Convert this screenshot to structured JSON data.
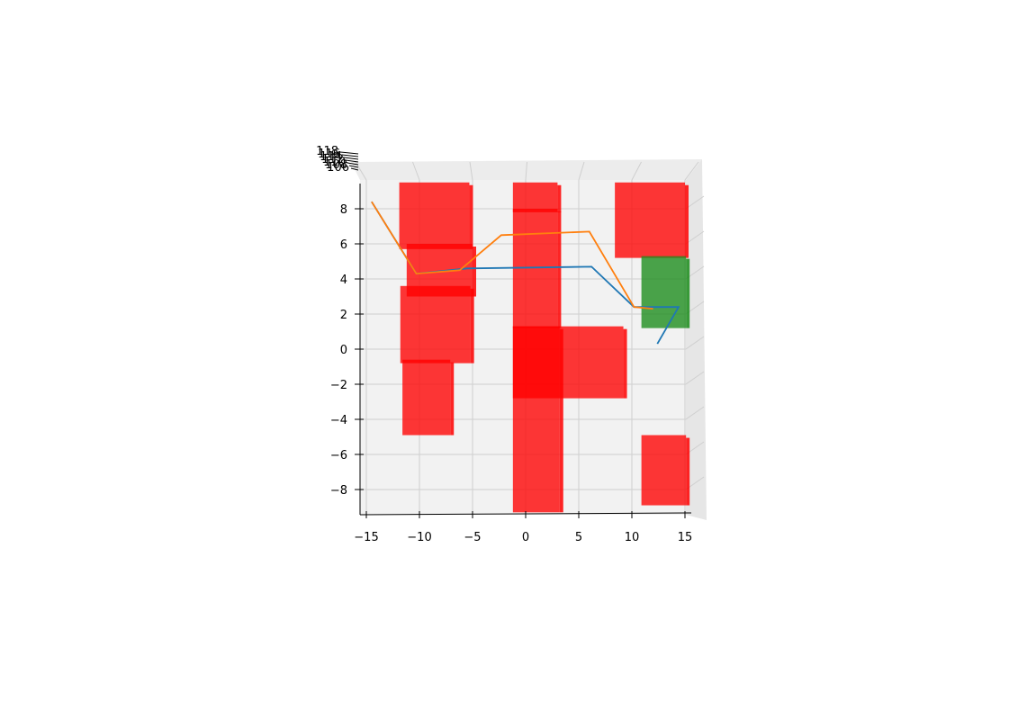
{
  "chart_data": {
    "type": "3d-line-with-boxes",
    "title": "",
    "xlabel": "",
    "ylabel": "",
    "zlabel": "",
    "view": "top-down",
    "grid": true,
    "xlim": [
      -15.5,
      15.5
    ],
    "ylim": [
      -9.5,
      9.5
    ],
    "x_ticks": [
      -15,
      -10,
      -5,
      0,
      5,
      10,
      15
    ],
    "x_tick_labels": [
      "−15",
      "−10",
      "−5",
      "0",
      "5",
      "10",
      "15"
    ],
    "y_ticks": [
      -8,
      -6,
      -4,
      -2,
      0,
      2,
      4,
      6,
      8
    ],
    "y_tick_labels": [
      "−8",
      "−6",
      "−4",
      "−2",
      "0",
      "2",
      "4",
      "6",
      "8"
    ],
    "z_tick_labels": [
      "118",
      "116",
      "114",
      "112",
      "110",
      "108",
      "106"
    ],
    "obstacle_color": "#ff0000",
    "goal_color": "#1a8c1a",
    "boxes": [
      {
        "role": "obstacle",
        "x": [
          -11.9,
          -5.3
        ],
        "y": [
          5.7,
          10.3
        ]
      },
      {
        "role": "obstacle",
        "x": [
          -11.2,
          -5.0
        ],
        "y": [
          3.0,
          6.0
        ]
      },
      {
        "role": "obstacle",
        "x": [
          -11.8,
          -5.2
        ],
        "y": [
          -0.8,
          3.6
        ]
      },
      {
        "role": "obstacle",
        "x": [
          -11.6,
          -7.1
        ],
        "y": [
          -4.9,
          -0.6
        ]
      },
      {
        "role": "obstacle",
        "x": [
          -1.2,
          3.0
        ],
        "y": [
          7.8,
          10.3
        ]
      },
      {
        "role": "obstacle",
        "x": [
          -1.2,
          3.0
        ],
        "y": [
          1.2,
          8.0
        ]
      },
      {
        "role": "obstacle",
        "x": [
          -1.2,
          3.2
        ],
        "y": [
          -9.3,
          1.3
        ]
      },
      {
        "role": "obstacle",
        "x": [
          -1.2,
          9.2
        ],
        "y": [
          -2.8,
          1.3
        ]
      },
      {
        "role": "obstacle",
        "x": [
          8.4,
          15.0
        ],
        "y": [
          5.2,
          9.6
        ]
      },
      {
        "role": "obstacle",
        "x": [
          10.9,
          15.1
        ],
        "y": [
          -8.9,
          -4.9
        ]
      },
      {
        "role": "goal",
        "x": [
          10.9,
          15.1
        ],
        "y": [
          1.2,
          5.3
        ]
      }
    ],
    "series": [
      {
        "color": "#1f77b4",
        "x": [
          -14.5,
          -10.3,
          -5.5,
          6.2,
          10.2,
          14.4,
          12.4
        ],
        "y": [
          8.4,
          4.3,
          4.6,
          4.7,
          2.4,
          2.4,
          0.3
        ]
      },
      {
        "color": "#ff7f0e",
        "x": [
          -14.5,
          -10.3,
          -6.2,
          -2.3,
          6.0,
          10.2,
          12.0
        ],
        "y": [
          8.4,
          4.3,
          4.5,
          6.5,
          6.7,
          2.4,
          2.3
        ]
      }
    ]
  }
}
